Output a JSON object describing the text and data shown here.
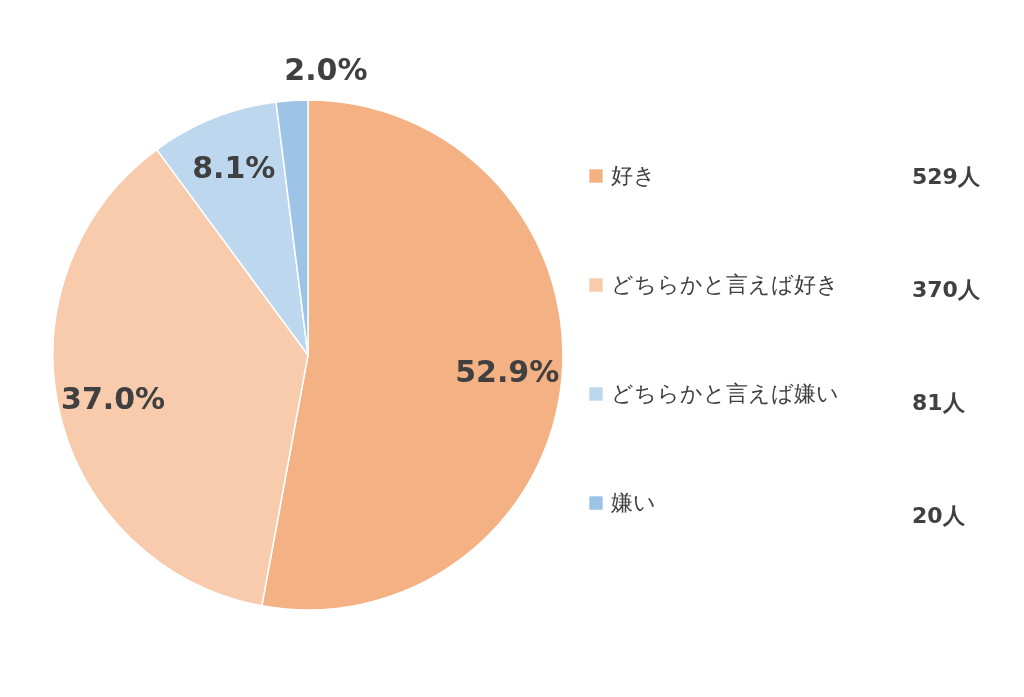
{
  "chart_data": {
    "type": "pie",
    "categories": [
      "好き",
      "どちらかと言えば好き",
      "どちらかと言えば嫌い",
      "嫌い"
    ],
    "values": [
      52.9,
      37.0,
      8.1,
      2.0
    ],
    "value_labels": [
      "52.9%",
      "37.0%",
      "8.1%",
      "2.0%"
    ],
    "colors": [
      "#f4b183",
      "#f8cbad",
      "#bdd7ee",
      "#9dc3e6"
    ],
    "legend": "right",
    "annotations": [
      "529人",
      "370人",
      "81人",
      "20人"
    ]
  }
}
